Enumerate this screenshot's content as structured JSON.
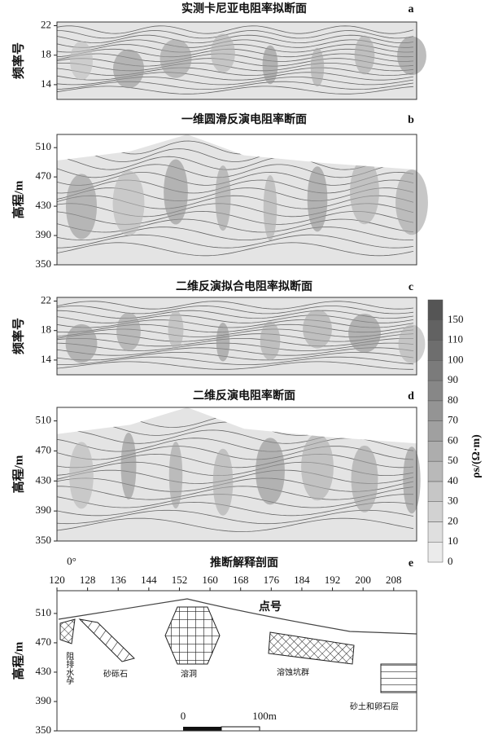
{
  "chart_data": [
    {
      "type": "contour",
      "title": "实测卡尼亚电阻率拟断面",
      "panel": "a",
      "ylabel": "频率号",
      "ylim": [
        12,
        22.5
      ],
      "yticks": [
        14,
        18,
        22
      ]
    },
    {
      "type": "contour",
      "title": "一维圆滑反演电阻率断面",
      "panel": "b",
      "ylabel": "高程/m",
      "ylim": [
        350,
        528
      ],
      "yticks": [
        350,
        390,
        430,
        470,
        510
      ]
    },
    {
      "type": "contour",
      "title": "二维反演拟合电阻率拟断面",
      "panel": "c",
      "ylabel": "频率号",
      "ylim": [
        12,
        22.5
      ],
      "yticks": [
        14,
        18,
        22
      ]
    },
    {
      "type": "contour",
      "title": "二维反演电阻率断面",
      "panel": "d",
      "ylabel": "高程/m",
      "ylim": [
        350,
        528
      ],
      "yticks": [
        350,
        390,
        430,
        470,
        510
      ]
    },
    {
      "type": "section",
      "title": "推断解释剖面",
      "panel": "e",
      "ylabel": "高程/m",
      "xlim": [
        120,
        214
      ],
      "xticks": [
        120,
        128,
        136,
        144,
        152,
        160,
        168,
        176,
        184,
        192,
        200,
        208
      ],
      "ylim": [
        350,
        541
      ],
      "yticks": [
        350,
        390,
        430,
        470,
        510
      ],
      "corner_note": "0°",
      "xlabel": "点号",
      "annotations": [
        "阻排水孕",
        "砂砾石",
        "溶洞",
        "溶蚀坑群",
        "砂土和卵石层"
      ],
      "scale_bar": [
        "0",
        "100m"
      ]
    }
  ],
  "colorbar": {
    "label": "ρs/(Ω·m)",
    "levels": [
      0,
      10,
      20,
      30,
      40,
      50,
      60,
      70,
      80,
      90,
      100,
      110,
      150
    ]
  }
}
